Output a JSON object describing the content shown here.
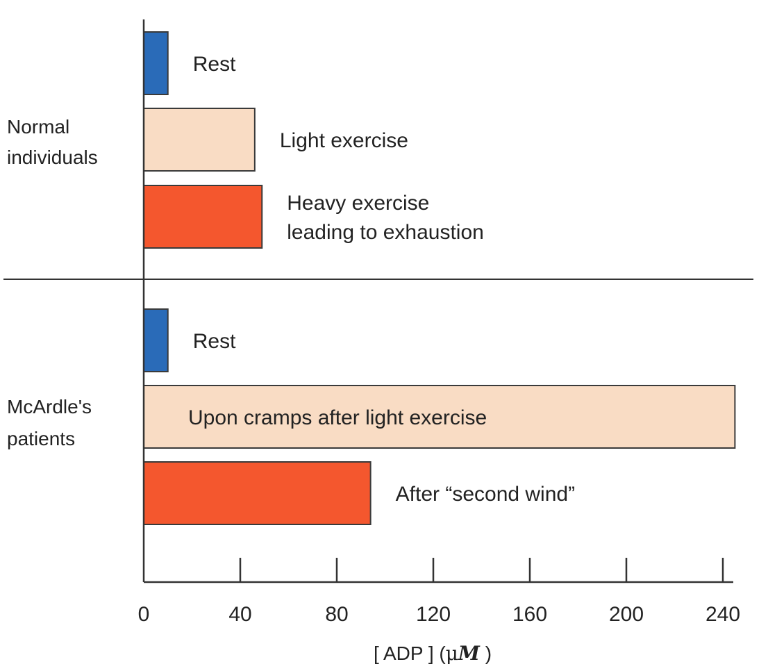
{
  "chart_data": {
    "type": "bar",
    "orientation": "horizontal",
    "xlabel_parts": [
      "[ ADP ] (",
      "μ",
      "M",
      " )"
    ],
    "xlim": [
      0,
      250
    ],
    "xticks": [
      0,
      40,
      80,
      120,
      160,
      200,
      240
    ],
    "groups": [
      {
        "name_lines": [
          "Normal",
          "individuals"
        ],
        "bars": [
          {
            "label_lines": [
              "Rest"
            ],
            "value": 10,
            "color": "#2a6bb8"
          },
          {
            "label_lines": [
              "Light exercise"
            ],
            "value": 46,
            "color": "#f9dcc4"
          },
          {
            "label_lines": [
              "Heavy exercise",
              "leading to exhaustion"
            ],
            "value": 49,
            "color": "#f4572e"
          }
        ]
      },
      {
        "name_lines": [
          "McArdle's",
          "patients"
        ],
        "bars": [
          {
            "label_lines": [
              "Rest"
            ],
            "value": 10,
            "color": "#2a6bb8"
          },
          {
            "label_lines": [
              "Upon cramps after light exercise"
            ],
            "value": 245,
            "color": "#f9dcc4"
          },
          {
            "label_lines": [
              "After “second wind”"
            ],
            "value": 94,
            "color": "#f4572e"
          }
        ]
      }
    ],
    "grid": false,
    "legend": "none"
  }
}
